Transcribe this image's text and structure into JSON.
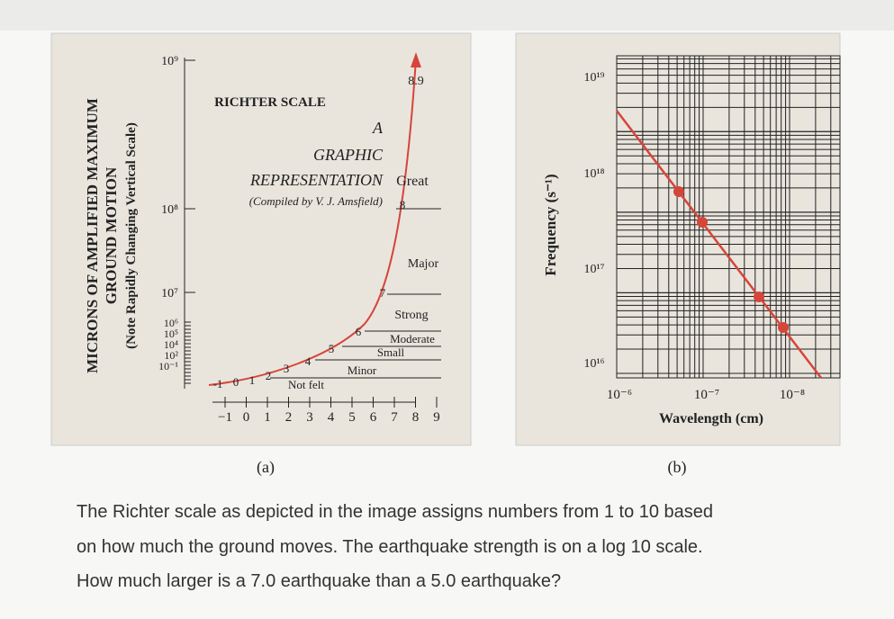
{
  "figure_a": {
    "y_label_lines": [
      "MICRONS OF AMPLIFIED MAXIMUM",
      "GROUND MOTION",
      "(Note Rapidly Changing Vertical Scale)"
    ],
    "title": "RICHTER SCALE",
    "subtitle_lines": [
      "A",
      "GRAPHIC",
      "REPRESENTATION"
    ],
    "credit": "(Compiled by V. J. Amsfield)",
    "y_ticks": [
      "10⁹",
      "10⁸",
      "10⁷",
      "10⁶",
      "10⁵",
      "10⁴",
      "10²",
      "10⁻¹"
    ],
    "x_ticks": [
      "−1",
      "0",
      "1",
      "2",
      "3",
      "4",
      "5",
      "6",
      "7",
      "8",
      "9"
    ],
    "curve_labels": [
      "-1",
      "0",
      "1",
      "2",
      "3",
      "4",
      "5",
      "6",
      "7",
      "8",
      "8.9"
    ],
    "classes": [
      "Great",
      "Major",
      "Strong",
      "Moderate",
      "Small",
      "Minor",
      "Not felt"
    ],
    "caption": "(a)"
  },
  "figure_b": {
    "y_label": "Frequency (s⁻¹)",
    "y_ticks": [
      "10¹⁹",
      "10¹⁸",
      "10¹⁷",
      "10¹⁶"
    ],
    "x_ticks": [
      "10⁻⁶",
      "10⁻⁷",
      "10⁻⁸"
    ],
    "x_label": "Wavelength (cm)",
    "caption": "(b)"
  },
  "question": {
    "lines": [
      "The Richter scale as depicted in the image assigns numbers from 1 to 10 based",
      "on how much the ground moves. The earthquake strength is on a log 10 scale.",
      "How much larger is a 7.0 earthquake than a 5.0 earthquake?"
    ]
  }
}
